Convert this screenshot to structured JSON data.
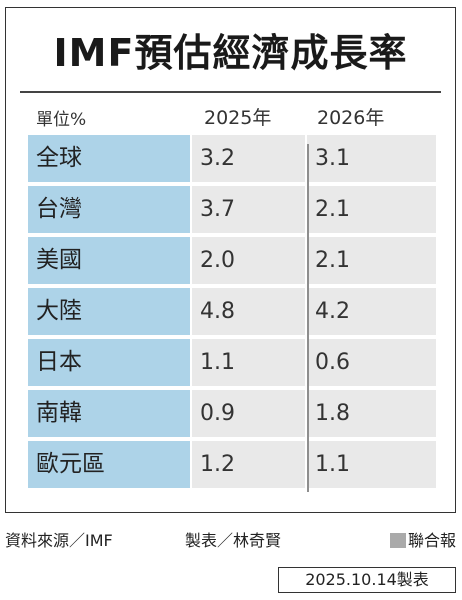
{
  "chart_data": {
    "type": "table",
    "title": "IMF預估經濟成長率",
    "unit_label": "單位%",
    "columns": [
      "2025年",
      "2026年"
    ],
    "rows": [
      {
        "name": "全球",
        "values": [
          "3.2",
          "3.1"
        ]
      },
      {
        "name": "台灣",
        "values": [
          "3.7",
          "2.1"
        ]
      },
      {
        "name": "美國",
        "values": [
          "2.0",
          "2.1"
        ]
      },
      {
        "name": "大陸",
        "values": [
          "4.8",
          "4.2"
        ]
      },
      {
        "name": "日本",
        "values": [
          "1.1",
          "0.6"
        ]
      },
      {
        "name": "南韓",
        "values": [
          "0.9",
          "1.8"
        ]
      },
      {
        "name": "歐元區",
        "values": [
          "1.2",
          "1.1"
        ]
      }
    ]
  },
  "footer": {
    "source": "資料來源／IMF",
    "maker": "製表／林奇賢",
    "brand": "聯合報",
    "date": "2025.10.14製表"
  },
  "colors": {
    "name_cell": "#add3e8",
    "value_cell": "#e9e9e9"
  }
}
